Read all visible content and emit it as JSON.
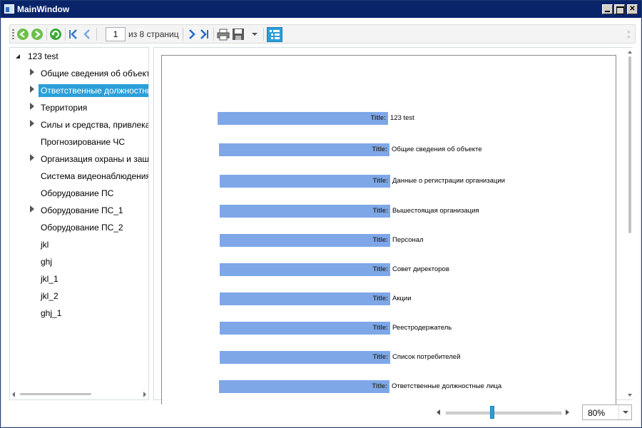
{
  "window": {
    "title": "MainWindow"
  },
  "toolbar": {
    "page_number": "1",
    "page_of_label": "из 8 страниц",
    "buttons": [
      "back-icon",
      "forward-icon",
      "refresh-icon",
      "first-page-icon",
      "previous-page-icon",
      "next-page-icon",
      "last-page-icon",
      "print-icon",
      "save-icon",
      "save-dropdown-icon",
      "document-map-icon"
    ]
  },
  "tree": {
    "root": "123 test",
    "items": [
      {
        "label": "Общие сведения об объекте",
        "expandable": true,
        "selected": false
      },
      {
        "label": "Ответственные должностные",
        "expandable": true,
        "selected": true
      },
      {
        "label": "Территория",
        "expandable": true,
        "selected": false
      },
      {
        "label": "Силы и средства, привлекаем",
        "expandable": true,
        "selected": false
      },
      {
        "label": "Прогнозирование ЧС",
        "expandable": false,
        "selected": false
      },
      {
        "label": "Организация охраны и защи",
        "expandable": true,
        "selected": false
      },
      {
        "label": "Система видеонаблюдения",
        "expandable": false,
        "selected": false
      },
      {
        "label": "Оборудование ПС",
        "expandable": false,
        "selected": false
      },
      {
        "label": "Оборудование ПС_1",
        "expandable": true,
        "selected": false
      },
      {
        "label": "Оборудование ПС_2",
        "expandable": false,
        "selected": false
      },
      {
        "label": "jkl",
        "expandable": false,
        "selected": false
      },
      {
        "label": "ghj",
        "expandable": false,
        "selected": false
      },
      {
        "label": "jkl_1",
        "expandable": false,
        "selected": false
      },
      {
        "label": "jkl_2",
        "expandable": false,
        "selected": false
      },
      {
        "label": "ghj_1",
        "expandable": false,
        "selected": false
      }
    ]
  },
  "document": {
    "rows": [
      {
        "label": "Title:",
        "value": "123 test"
      },
      {
        "label": "Title:",
        "value": "Общие сведения об объекте"
      },
      {
        "label": "Title:",
        "value": "Данные о регистрации организации"
      },
      {
        "label": "Title:",
        "value": "Вышестоящая организация"
      },
      {
        "label": "Title:",
        "value": "Персонал"
      },
      {
        "label": "Title:",
        "value": "Совет директоров"
      },
      {
        "label": "Title:",
        "value": "Акции"
      },
      {
        "label": "Title:",
        "value": "Реестродержатель"
      },
      {
        "label": "Title:",
        "value": "Список потребителей"
      },
      {
        "label": "Title:",
        "value": "Ответственные должностные лица"
      }
    ]
  },
  "zoom": {
    "value": "80%",
    "level": 0.4
  },
  "colors": {
    "accent": "#2b9fd8",
    "bar": "#7ea7e8",
    "titlebar": "#0a246a"
  }
}
